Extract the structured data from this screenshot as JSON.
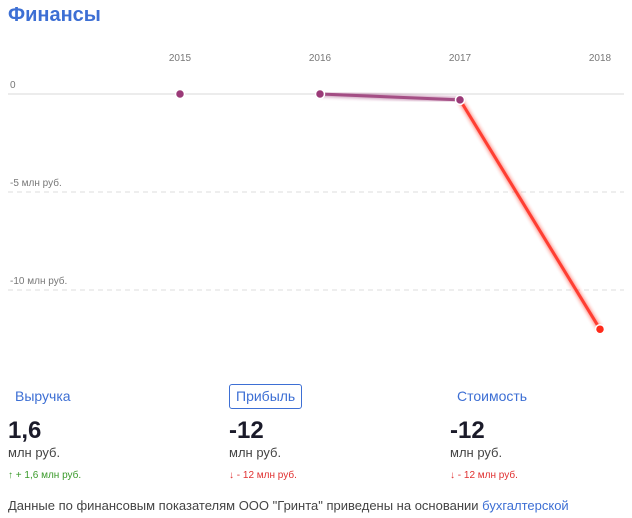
{
  "header": {
    "title": "Финансы"
  },
  "chart_data": {
    "type": "line",
    "x": [
      "2015",
      "2016",
      "2017",
      "2018"
    ],
    "series": [
      {
        "values": [
          0,
          0,
          -0.3,
          -12
        ]
      }
    ],
    "ylim": [
      -13,
      0
    ],
    "y_ticks": [
      {
        "value": 0,
        "label": "0"
      },
      {
        "value": -5,
        "label": "-5 млн руб."
      },
      {
        "value": -10,
        "label": "-10 млн руб."
      }
    ],
    "colors": {
      "normal": "#9b3a78",
      "drop": "#ff2a1a"
    },
    "grid": true
  },
  "metrics": [
    {
      "label": "Выручка",
      "value": "1,6",
      "unit": "млн руб.",
      "arrow": "↑",
      "change": "+ 1,6 млн руб.",
      "direction": "up",
      "active": false
    },
    {
      "label": "Прибыль",
      "value": "-12",
      "unit": "млн руб.",
      "arrow": "↓",
      "change": "- 12 млн руб.",
      "direction": "down",
      "active": true
    },
    {
      "label": "Стоимость",
      "value": "-12",
      "unit": "млн руб.",
      "arrow": "↓",
      "change": "- 12 млн руб.",
      "direction": "down",
      "active": false
    }
  ],
  "footer": {
    "text": "Данные по финансовым показателям ООО \"Гринта\" приведены на основании ",
    "link": "бухгалтерской"
  }
}
